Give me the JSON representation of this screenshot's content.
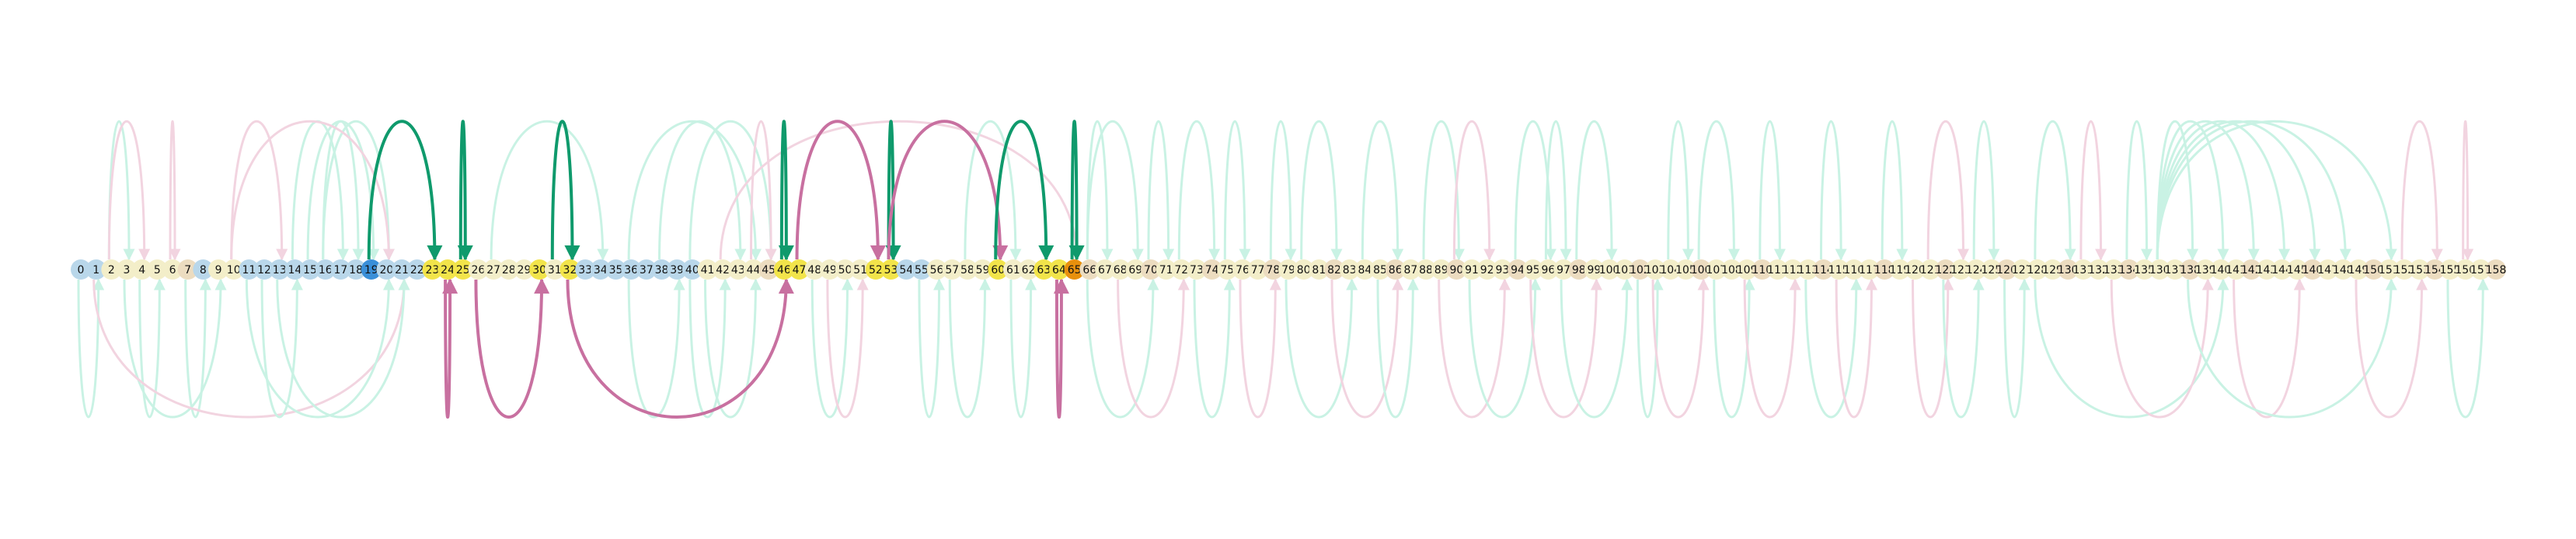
{
  "diagram": {
    "type": "arc-diagram",
    "node_count": 159,
    "node_labels": [
      "0",
      "1",
      "2",
      "3",
      "4",
      "5",
      "6",
      "7",
      "8",
      "9",
      "10",
      "11",
      "12",
      "13",
      "14",
      "15",
      "16",
      "17",
      "18",
      "19",
      "20",
      "21",
      "22",
      "23",
      "24",
      "25",
      "26",
      "27",
      "28",
      "29",
      "30",
      "31",
      "32",
      "33",
      "34",
      "35",
      "36",
      "37",
      "38",
      "39",
      "40",
      "41",
      "42",
      "43",
      "44",
      "45",
      "46",
      "47",
      "48",
      "49",
      "50",
      "51",
      "52",
      "53",
      "54",
      "55",
      "56",
      "57",
      "58",
      "59",
      "60",
      "61",
      "62",
      "63",
      "64",
      "65",
      "66",
      "67",
      "68",
      "69",
      "70",
      "71",
      "72",
      "73",
      "74",
      "75",
      "76",
      "77",
      "78",
      "79",
      "80",
      "81",
      "82",
      "83",
      "84",
      "85",
      "86",
      "87",
      "88",
      "89",
      "90",
      "91",
      "92",
      "93",
      "94",
      "95",
      "96",
      "97",
      "98",
      "99",
      "100",
      "101",
      "102",
      "103",
      "104",
      "105",
      "106",
      "107",
      "108",
      "109",
      "110",
      "111",
      "112",
      "113",
      "114",
      "115",
      "116",
      "117",
      "118",
      "119",
      "120",
      "121",
      "122",
      "123",
      "124",
      "125",
      "126",
      "127",
      "128",
      "129",
      "130",
      "131",
      "132",
      "133",
      "134",
      "135",
      "136",
      "137",
      "138",
      "139",
      "140",
      "141",
      "142",
      "143",
      "144",
      "145",
      "146",
      "147",
      "148",
      "149",
      "150",
      "151",
      "152",
      "153",
      "154",
      "155",
      "156",
      "157",
      "158"
    ],
    "node_colors": {
      "blue": "#b9d7ea",
      "cream": "#f3eec9",
      "tan": "#ecdcc0",
      "yellow": "#f2e44a",
      "highlight_blue": "#3a8fd8",
      "highlight_orange": "#e8900d"
    },
    "node_color_pattern": [
      "blue",
      "blue",
      "cream",
      "cream",
      "cream",
      "cream",
      "cream",
      "tan",
      "blue",
      "cream",
      "cream",
      "blue",
      "blue",
      "blue",
      "blue",
      "blue",
      "blue",
      "blue",
      "blue",
      "highlight_blue",
      "blue",
      "blue",
      "blue",
      "yellow",
      "yellow",
      "yellow",
      "cream",
      "cream",
      "cream",
      "cream",
      "yellow",
      "cream",
      "yellow",
      "blue",
      "blue",
      "blue",
      "blue",
      "blue",
      "blue",
      "blue",
      "blue",
      "cream",
      "cream",
      "cream",
      "cream",
      "tan",
      "yellow",
      "yellow",
      "cream",
      "cream",
      "cream",
      "cream",
      "yellow",
      "yellow",
      "blue",
      "blue",
      "cream",
      "cream",
      "cream",
      "cream",
      "yellow",
      "cream",
      "cream",
      "yellow",
      "yellow",
      "highlight_orange"
    ],
    "edge_colors": {
      "faint_green": "#c9f2e4",
      "faint_pink": "#f2d4e0",
      "strong_green": "#0f9a6c",
      "strong_pink": "#c870a0"
    },
    "highlight_edges": [
      {
        "from": 19,
        "to": 23,
        "direction": "above",
        "color": "strong_green"
      },
      {
        "from": 25,
        "to": 25,
        "direction": "above",
        "color": "strong_green"
      },
      {
        "from": 31,
        "to": 32,
        "direction": "above",
        "color": "strong_green"
      },
      {
        "from": 46,
        "to": 46,
        "direction": "above",
        "color": "strong_green"
      },
      {
        "from": 47,
        "to": 52,
        "direction": "above",
        "color": "strong_pink"
      },
      {
        "from": 53,
        "to": 53,
        "direction": "above",
        "color": "strong_green"
      },
      {
        "from": 53,
        "to": 60,
        "direction": "above",
        "color": "strong_pink"
      },
      {
        "from": 60,
        "to": 63,
        "direction": "above",
        "color": "strong_green"
      },
      {
        "from": 65,
        "to": 65,
        "direction": "above",
        "color": "strong_green"
      },
      {
        "from": 24,
        "to": 24,
        "direction": "below",
        "color": "strong_pink"
      },
      {
        "from": 26,
        "to": 30,
        "direction": "below",
        "color": "strong_pink"
      },
      {
        "from": 32,
        "to": 46,
        "direction": "below",
        "color": "strong_pink"
      },
      {
        "from": 64,
        "to": 64,
        "direction": "below",
        "color": "strong_pink"
      }
    ],
    "faint_edges": [
      {
        "from": 2,
        "to": 3,
        "direction": "above",
        "color": "faint_green"
      },
      {
        "from": 2,
        "to": 4,
        "direction": "above",
        "color": "faint_pink"
      },
      {
        "from": 6,
        "to": 6,
        "direction": "above",
        "color": "faint_pink"
      },
      {
        "from": 10,
        "to": 13,
        "direction": "above",
        "color": "faint_pink"
      },
      {
        "from": 14,
        "to": 17,
        "direction": "above",
        "color": "faint_green"
      },
      {
        "from": 15,
        "to": 19,
        "direction": "above",
        "color": "faint_green"
      },
      {
        "from": 16,
        "to": 18,
        "direction": "above",
        "color": "faint_green"
      },
      {
        "from": 16,
        "to": 20,
        "direction": "above",
        "color": "faint_green"
      },
      {
        "from": 10,
        "to": 20,
        "direction": "above",
        "color": "faint_pink"
      },
      {
        "from": 27,
        "to": 34,
        "direction": "above",
        "color": "faint_green"
      },
      {
        "from": 38,
        "to": 43,
        "direction": "above",
        "color": "faint_green"
      },
      {
        "from": 36,
        "to": 44,
        "direction": "above",
        "color": "faint_green"
      },
      {
        "from": 40,
        "to": 45,
        "direction": "above",
        "color": "faint_green"
      },
      {
        "from": 44,
        "to": 45,
        "direction": "above",
        "color": "faint_pink"
      },
      {
        "from": 42,
        "to": 65,
        "direction": "above",
        "color": "faint_pink"
      },
      {
        "from": 58,
        "to": 61,
        "direction": "above",
        "color": "faint_green"
      },
      {
        "from": 66,
        "to": 67,
        "direction": "above",
        "color": "faint_green"
      },
      {
        "from": 66,
        "to": 69,
        "direction": "above",
        "color": "faint_green"
      },
      {
        "from": 70,
        "to": 71,
        "direction": "above",
        "color": "faint_green"
      },
      {
        "from": 72,
        "to": 74,
        "direction": "above",
        "color": "faint_green"
      },
      {
        "from": 75,
        "to": 76,
        "direction": "above",
        "color": "faint_green"
      },
      {
        "from": 78,
        "to": 79,
        "direction": "above",
        "color": "faint_green"
      },
      {
        "from": 80,
        "to": 82,
        "direction": "above",
        "color": "faint_green"
      },
      {
        "from": 84,
        "to": 86,
        "direction": "above",
        "color": "faint_green"
      },
      {
        "from": 88,
        "to": 90,
        "direction": "above",
        "color": "faint_green"
      },
      {
        "from": 90,
        "to": 92,
        "direction": "above",
        "color": "faint_pink"
      },
      {
        "from": 94,
        "to": 96,
        "direction": "above",
        "color": "faint_green"
      },
      {
        "from": 96,
        "to": 97,
        "direction": "above",
        "color": "faint_green"
      },
      {
        "from": 98,
        "to": 100,
        "direction": "above",
        "color": "faint_green"
      },
      {
        "from": 104,
        "to": 105,
        "direction": "above",
        "color": "faint_green"
      },
      {
        "from": 106,
        "to": 108,
        "direction": "above",
        "color": "faint_green"
      },
      {
        "from": 110,
        "to": 111,
        "direction": "above",
        "color": "faint_green"
      },
      {
        "from": 114,
        "to": 115,
        "direction": "above",
        "color": "faint_green"
      },
      {
        "from": 118,
        "to": 119,
        "direction": "above",
        "color": "faint_green"
      },
      {
        "from": 121,
        "to": 123,
        "direction": "above",
        "color": "faint_pink"
      },
      {
        "from": 124,
        "to": 125,
        "direction": "above",
        "color": "faint_green"
      },
      {
        "from": 128,
        "to": 130,
        "direction": "above",
        "color": "faint_green"
      },
      {
        "from": 131,
        "to": 132,
        "direction": "above",
        "color": "faint_pink"
      },
      {
        "from": 134,
        "to": 135,
        "direction": "above",
        "color": "faint_green"
      },
      {
        "from": 136,
        "to": 138,
        "direction": "above",
        "color": "faint_green"
      },
      {
        "from": 136,
        "to": 140,
        "direction": "above",
        "color": "faint_green"
      },
      {
        "from": 136,
        "to": 142,
        "direction": "above",
        "color": "faint_green"
      },
      {
        "from": 136,
        "to": 144,
        "direction": "above",
        "color": "faint_green"
      },
      {
        "from": 136,
        "to": 146,
        "direction": "above",
        "color": "faint_green"
      },
      {
        "from": 136,
        "to": 148,
        "direction": "above",
        "color": "faint_green"
      },
      {
        "from": 136,
        "to": 151,
        "direction": "above",
        "color": "faint_green"
      },
      {
        "from": 152,
        "to": 154,
        "direction": "above",
        "color": "faint_pink"
      },
      {
        "from": 156,
        "to": 156,
        "direction": "above",
        "color": "faint_pink"
      },
      {
        "from": 0,
        "to": 1,
        "direction": "below",
        "color": "faint_green"
      },
      {
        "from": 4,
        "to": 5,
        "direction": "below",
        "color": "faint_green"
      },
      {
        "from": 7,
        "to": 8,
        "direction": "below",
        "color": "faint_green"
      },
      {
        "from": 3,
        "to": 9,
        "direction": "below",
        "color": "faint_green"
      },
      {
        "from": 1,
        "to": 21,
        "direction": "below",
        "color": "faint_pink"
      },
      {
        "from": 12,
        "to": 14,
        "direction": "below",
        "color": "faint_green"
      },
      {
        "from": 11,
        "to": 20,
        "direction": "below",
        "color": "faint_green"
      },
      {
        "from": 13,
        "to": 21,
        "direction": "below",
        "color": "faint_green"
      },
      {
        "from": 36,
        "to": 39,
        "direction": "below",
        "color": "faint_green"
      },
      {
        "from": 40,
        "to": 42,
        "direction": "below",
        "color": "faint_green"
      },
      {
        "from": 41,
        "to": 44,
        "direction": "below",
        "color": "faint_green"
      },
      {
        "from": 48,
        "to": 50,
        "direction": "below",
        "color": "faint_green"
      },
      {
        "from": 49,
        "to": 51,
        "direction": "below",
        "color": "faint_pink"
      },
      {
        "from": 55,
        "to": 56,
        "direction": "below",
        "color": "faint_green"
      },
      {
        "from": 57,
        "to": 59,
        "direction": "below",
        "color": "faint_green"
      },
      {
        "from": 61,
        "to": 62,
        "direction": "below",
        "color": "faint_green"
      },
      {
        "from": 66,
        "to": 70,
        "direction": "below",
        "color": "faint_green"
      },
      {
        "from": 68,
        "to": 72,
        "direction": "below",
        "color": "faint_pink"
      },
      {
        "from": 73,
        "to": 75,
        "direction": "below",
        "color": "faint_green"
      },
      {
        "from": 76,
        "to": 78,
        "direction": "below",
        "color": "faint_pink"
      },
      {
        "from": 79,
        "to": 83,
        "direction": "below",
        "color": "faint_green"
      },
      {
        "from": 82,
        "to": 86,
        "direction": "below",
        "color": "faint_pink"
      },
      {
        "from": 85,
        "to": 87,
        "direction": "below",
        "color": "faint_green"
      },
      {
        "from": 89,
        "to": 93,
        "direction": "below",
        "color": "faint_pink"
      },
      {
        "from": 91,
        "to": 95,
        "direction": "below",
        "color": "faint_green"
      },
      {
        "from": 95,
        "to": 99,
        "direction": "below",
        "color": "faint_pink"
      },
      {
        "from": 97,
        "to": 101,
        "direction": "below",
        "color": "faint_green"
      },
      {
        "from": 102,
        "to": 103,
        "direction": "below",
        "color": "faint_green"
      },
      {
        "from": 103,
        "to": 106,
        "direction": "below",
        "color": "faint_pink"
      },
      {
        "from": 107,
        "to": 109,
        "direction": "below",
        "color": "faint_green"
      },
      {
        "from": 109,
        "to": 112,
        "direction": "below",
        "color": "faint_pink"
      },
      {
        "from": 113,
        "to": 116,
        "direction": "below",
        "color": "faint_green"
      },
      {
        "from": 115,
        "to": 117,
        "direction": "below",
        "color": "faint_pink"
      },
      {
        "from": 120,
        "to": 122,
        "direction": "below",
        "color": "faint_pink"
      },
      {
        "from": 122,
        "to": 124,
        "direction": "below",
        "color": "faint_green"
      },
      {
        "from": 126,
        "to": 127,
        "direction": "below",
        "color": "faint_green"
      },
      {
        "from": 128,
        "to": 140,
        "direction": "below",
        "color": "faint_green"
      },
      {
        "from": 133,
        "to": 139,
        "direction": "below",
        "color": "faint_pink"
      },
      {
        "from": 141,
        "to": 145,
        "direction": "below",
        "color": "faint_pink"
      },
      {
        "from": 138,
        "to": 151,
        "direction": "below",
        "color": "faint_green"
      },
      {
        "from": 149,
        "to": 153,
        "direction": "below",
        "color": "faint_pink"
      },
      {
        "from": 155,
        "to": 157,
        "direction": "below",
        "color": "faint_green"
      }
    ]
  }
}
